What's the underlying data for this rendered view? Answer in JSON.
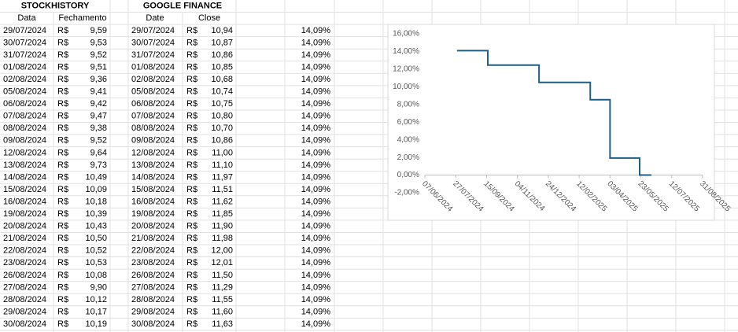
{
  "sheet": {
    "headers": {
      "stockhistory": "STOCKHISTORY",
      "google_finance": "GOOGLE FINANCE",
      "col_data": "Data",
      "col_fechamento": "Fechamento",
      "col_date": "Date",
      "col_close": "Close"
    },
    "rows": [
      [
        "29/07/2024",
        "R$",
        "9,59",
        "29/07/2024",
        "R$",
        "10,94",
        "14,09%"
      ],
      [
        "30/07/2024",
        "R$",
        "9,53",
        "30/07/2024",
        "R$",
        "10,87",
        "14,09%"
      ],
      [
        "31/07/2024",
        "R$",
        "9,52",
        "31/07/2024",
        "R$",
        "10,86",
        "14,09%"
      ],
      [
        "01/08/2024",
        "R$",
        "9,51",
        "01/08/2024",
        "R$",
        "10,85",
        "14,09%"
      ],
      [
        "02/08/2024",
        "R$",
        "9,36",
        "02/08/2024",
        "R$",
        "10,68",
        "14,09%"
      ],
      [
        "05/08/2024",
        "R$",
        "9,41",
        "05/08/2024",
        "R$",
        "10,74",
        "14,09%"
      ],
      [
        "06/08/2024",
        "R$",
        "9,42",
        "06/08/2024",
        "R$",
        "10,75",
        "14,09%"
      ],
      [
        "07/08/2024",
        "R$",
        "9,47",
        "07/08/2024",
        "R$",
        "10,80",
        "14,09%"
      ],
      [
        "08/08/2024",
        "R$",
        "9,38",
        "08/08/2024",
        "R$",
        "10,70",
        "14,09%"
      ],
      [
        "09/08/2024",
        "R$",
        "9,52",
        "09/08/2024",
        "R$",
        "10,86",
        "14,09%"
      ],
      [
        "12/08/2024",
        "R$",
        "9,64",
        "12/08/2024",
        "R$",
        "11,00",
        "14,09%"
      ],
      [
        "13/08/2024",
        "R$",
        "9,73",
        "13/08/2024",
        "R$",
        "11,10",
        "14,09%"
      ],
      [
        "14/08/2024",
        "R$",
        "10,49",
        "14/08/2024",
        "R$",
        "11,97",
        "14,09%"
      ],
      [
        "15/08/2024",
        "R$",
        "10,09",
        "15/08/2024",
        "R$",
        "11,51",
        "14,09%"
      ],
      [
        "16/08/2024",
        "R$",
        "10,18",
        "16/08/2024",
        "R$",
        "11,62",
        "14,09%"
      ],
      [
        "19/08/2024",
        "R$",
        "10,39",
        "19/08/2024",
        "R$",
        "11,85",
        "14,09%"
      ],
      [
        "20/08/2024",
        "R$",
        "10,43",
        "20/08/2024",
        "R$",
        "11,90",
        "14,09%"
      ],
      [
        "21/08/2024",
        "R$",
        "10,50",
        "21/08/2024",
        "R$",
        "11,98",
        "14,09%"
      ],
      [
        "22/08/2024",
        "R$",
        "10,52",
        "22/08/2024",
        "R$",
        "12,00",
        "14,09%"
      ],
      [
        "23/08/2024",
        "R$",
        "10,53",
        "23/08/2024",
        "R$",
        "12,01",
        "14,09%"
      ],
      [
        "26/08/2024",
        "R$",
        "10,08",
        "26/08/2024",
        "R$",
        "11,50",
        "14,09%"
      ],
      [
        "27/08/2024",
        "R$",
        "9,90",
        "27/08/2024",
        "R$",
        "11,29",
        "14,09%"
      ],
      [
        "28/08/2024",
        "R$",
        "10,12",
        "28/08/2024",
        "R$",
        "11,55",
        "14,09%"
      ],
      [
        "29/08/2024",
        "R$",
        "10,17",
        "29/08/2024",
        "R$",
        "11,60",
        "14,09%"
      ],
      [
        "30/08/2024",
        "R$",
        "10,19",
        "30/08/2024",
        "R$",
        "11,63",
        "14,09%"
      ]
    ]
  },
  "chart": {
    "type": "line",
    "color": "#1f5f85",
    "x": [
      "29/07/2024",
      "17/09/2024",
      "17/09/2024",
      "09/12/2024",
      "09/12/2024",
      "02/03/2025",
      "02/03/2025",
      "03/04/2025",
      "03/04/2025",
      "21/05/2025",
      "21/05/2025",
      "09/06/2025"
    ],
    "values": [
      14.09,
      14.09,
      12.46,
      12.46,
      10.5,
      10.5,
      8.54,
      8.54,
      1.93,
      1.93,
      0,
      0
    ],
    "xlim": [
      "07/06/2024",
      "31/08/2025"
    ],
    "xticks": [
      "07/06/2024",
      "27/07/2024",
      "15/09/2024",
      "04/11/2024",
      "24/12/2024",
      "12/02/2025",
      "03/04/2025",
      "23/05/2025",
      "12/07/2025",
      "31/08/2025"
    ],
    "ylim": [
      -2,
      16
    ],
    "yticks": [
      {
        "value": -2,
        "label": "-2,00%"
      },
      {
        "value": 0,
        "label": "0,00%"
      },
      {
        "value": 2,
        "label": "2,00%"
      },
      {
        "value": 4,
        "label": "4,00%"
      },
      {
        "value": 6,
        "label": "6,00%"
      },
      {
        "value": 8,
        "label": "8,00%"
      },
      {
        "value": 10,
        "label": "10,00%"
      },
      {
        "value": 12,
        "label": "12,00%"
      },
      {
        "value": 14,
        "label": "14,00%"
      },
      {
        "value": 16,
        "label": "16,00%"
      }
    ],
    "grid": false
  }
}
